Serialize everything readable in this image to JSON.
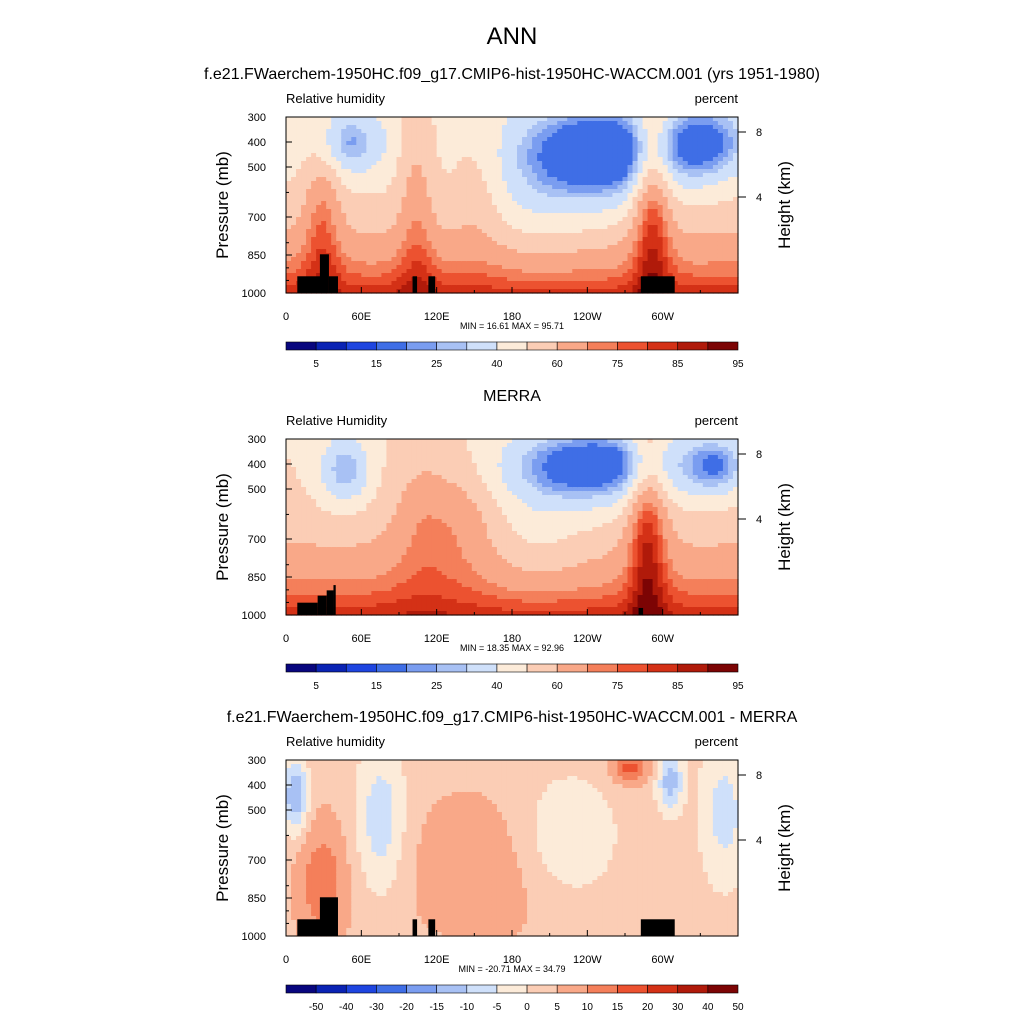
{
  "figure": {
    "title": "ANN",
    "subtitle_top": "f.e21.FWaerchem-1950HC.f09_g17.CMIP6-hist-1950HC-WACCM.001 (yrs 1951-1980)",
    "subtitle_mid": "MERRA",
    "subtitle_bottom": "f.e21.FWaerchem-1950HC.f09_g17.CMIP6-hist-1950HC-WACCM.001 - MERRA"
  },
  "colors": {
    "rh_palette": [
      "#08067e",
      "#0a23b4",
      "#1e45e0",
      "#3f6ee6",
      "#7a9df0",
      "#a8c1f4",
      "#cfe0fa",
      "#fcebd9",
      "#fbcdb5",
      "#f9a888",
      "#f47f5a",
      "#ec5230",
      "#d43116",
      "#b01a0a",
      "#7c0404"
    ],
    "diff_palette": [
      "#08067e",
      "#0a23b4",
      "#1e45e0",
      "#3f6ee6",
      "#7a9df0",
      "#a8c1f4",
      "#cfe0fa",
      "#fcebd9",
      "#fbcdb5",
      "#f9a888",
      "#f47f5a",
      "#ec5230",
      "#d43116",
      "#b01a0a",
      "#7c0404"
    ],
    "terrain": "#000000"
  },
  "chart_data": [
    {
      "type": "heatmap",
      "panel": "model",
      "left_label": "Relative humidity",
      "right_label": "percent",
      "ylabel_left": "Pressure (mb)",
      "ylabel_right": "Height (km)",
      "x_ticks": [
        "0",
        "60E",
        "120E",
        "180",
        "120W",
        "60W"
      ],
      "x_range_deg": [
        0,
        360
      ],
      "y_ticks": [
        "300",
        "400",
        "500",
        "700",
        "850",
        "1000"
      ],
      "y_range_mb": [
        300,
        1000
      ],
      "right_ticks": [
        "8",
        "4"
      ],
      "stats": "MIN =  16.61  MAX =  95.71",
      "min": 16.61,
      "max": 95.71,
      "colorbar_labels": [
        "5",
        "15",
        "25",
        "40",
        "60",
        "75",
        "85",
        "95"
      ],
      "colorbar_levels": [
        5,
        10,
        15,
        20,
        25,
        30,
        40,
        50,
        60,
        70,
        75,
        80,
        85,
        90,
        95
      ]
    },
    {
      "type": "heatmap",
      "panel": "obs",
      "left_label": "Relative Humidity",
      "right_label": "percent",
      "ylabel_left": "Pressure (mb)",
      "ylabel_right": "Height (km)",
      "x_ticks": [
        "0",
        "60E",
        "120E",
        "180",
        "120W",
        "60W"
      ],
      "x_range_deg": [
        0,
        360
      ],
      "y_ticks": [
        "300",
        "400",
        "500",
        "700",
        "850",
        "1000"
      ],
      "y_range_mb": [
        300,
        1000
      ],
      "right_ticks": [
        "8",
        "4"
      ],
      "stats": "MIN =  18.35  MAX =  92.96",
      "min": 18.35,
      "max": 92.96,
      "colorbar_labels": [
        "5",
        "15",
        "25",
        "40",
        "60",
        "75",
        "85",
        "95"
      ],
      "colorbar_levels": [
        5,
        10,
        15,
        20,
        25,
        30,
        40,
        50,
        60,
        70,
        75,
        80,
        85,
        90,
        95
      ]
    },
    {
      "type": "heatmap",
      "panel": "difference",
      "left_label": "Relative humidity",
      "right_label": "percent",
      "ylabel_left": "Pressure (mb)",
      "ylabel_right": "Height (km)",
      "x_ticks": [
        "0",
        "60E",
        "120E",
        "180",
        "120W",
        "60W"
      ],
      "x_range_deg": [
        0,
        360
      ],
      "y_ticks": [
        "300",
        "400",
        "500",
        "700",
        "850",
        "1000"
      ],
      "y_range_mb": [
        300,
        1000
      ],
      "right_ticks": [
        "8",
        "4"
      ],
      "stats": "MIN = -20.71  MAX =  34.79",
      "min": -20.71,
      "max": 34.79,
      "colorbar_labels": [
        "-50",
        "-40",
        "-30",
        "-20",
        "-15",
        "-10",
        "-5",
        "0",
        "5",
        "10",
        "15",
        "20",
        "30",
        "40",
        "50"
      ],
      "colorbar_levels": [
        -50,
        -40,
        -30,
        -20,
        -15,
        -10,
        -5,
        0,
        5,
        10,
        15,
        20,
        30,
        40,
        50
      ]
    }
  ]
}
